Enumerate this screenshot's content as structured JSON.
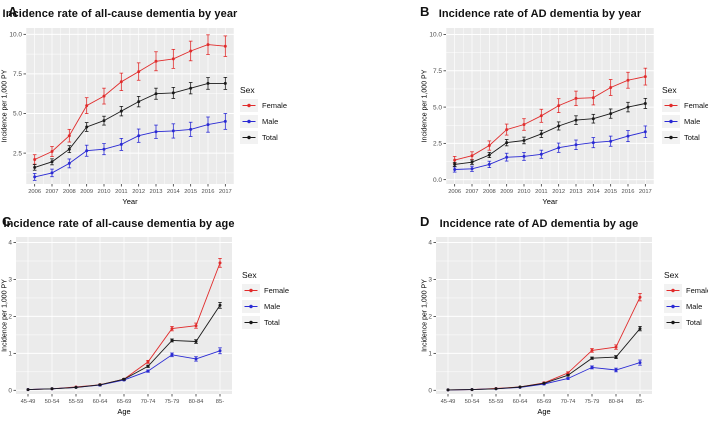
{
  "figure": {
    "background": "#ffffff",
    "panel_bg": "#ebebeb",
    "grid_color": "#ffffff",
    "tick_label_color": "#4d4d4d",
    "axis_title_color": "#000000",
    "legend": {
      "title": "Sex",
      "key_bg": "#f2f2f2",
      "entries": [
        {
          "label": "Female",
          "color": "#e12c2c"
        },
        {
          "label": "Male",
          "color": "#2a2ad4"
        },
        {
          "label": "Total",
          "color": "#1a1a1a"
        }
      ]
    }
  },
  "chart_data": [
    {
      "panel_label": "A",
      "title": "Incidence rate of all-cause dementia by year",
      "type": "line",
      "xlabel": "Year",
      "ylabel": "Incidence per 1,000 PY",
      "categories": [
        "2006",
        "2007",
        "2008",
        "2009",
        "2010",
        "2011",
        "2012",
        "2013",
        "2014",
        "2015",
        "2016",
        "2017"
      ],
      "ytick_values": [
        2.5,
        5.0,
        7.5,
        10.0
      ],
      "ytick_labels": [
        "2.5",
        "5.0",
        "7.5",
        "10.0"
      ],
      "ylim": [
        0.55,
        10.4
      ],
      "x_minor": true,
      "grid": true,
      "legend_position": "right",
      "series": [
        {
          "name": "Female",
          "color": "#e12c2c",
          "values": [
            2.1,
            2.6,
            3.6,
            5.5,
            6.1,
            7.0,
            7.65,
            8.3,
            8.45,
            8.95,
            9.35,
            9.25
          ],
          "err": [
            0.3,
            0.32,
            0.4,
            0.5,
            0.5,
            0.55,
            0.55,
            0.6,
            0.6,
            0.62,
            0.62,
            0.65
          ]
        },
        {
          "name": "Male",
          "color": "#2a2ad4",
          "values": [
            1.0,
            1.25,
            1.85,
            2.65,
            2.75,
            3.05,
            3.6,
            3.85,
            3.9,
            4.0,
            4.3,
            4.5
          ],
          "err": [
            0.22,
            0.24,
            0.28,
            0.35,
            0.35,
            0.38,
            0.42,
            0.42,
            0.45,
            0.45,
            0.48,
            0.5
          ]
        },
        {
          "name": "Total",
          "color": "#1a1a1a",
          "values": [
            1.6,
            1.95,
            2.75,
            4.15,
            4.55,
            5.15,
            5.75,
            6.25,
            6.3,
            6.6,
            6.9,
            6.9
          ],
          "err": [
            0.18,
            0.19,
            0.22,
            0.28,
            0.28,
            0.3,
            0.33,
            0.35,
            0.35,
            0.36,
            0.37,
            0.38
          ]
        }
      ]
    },
    {
      "panel_label": "B",
      "title": "Incidence rate of AD dementia by year",
      "type": "line",
      "xlabel": "Year",
      "ylabel": "Incidence per 1,000 PY",
      "categories": [
        "2006",
        "2007",
        "2008",
        "2009",
        "2010",
        "2011",
        "2012",
        "2013",
        "2014",
        "2015",
        "2016",
        "2017"
      ],
      "ytick_values": [
        0.0,
        2.5,
        5.0,
        7.5,
        10.0
      ],
      "ytick_labels": [
        "0.0",
        "2.5",
        "5.0",
        "7.5",
        "10.0"
      ],
      "ylim": [
        -0.3,
        10.45
      ],
      "x_minor": true,
      "grid": true,
      "legend_position": "right",
      "series": [
        {
          "name": "Female",
          "color": "#e12c2c",
          "values": [
            1.35,
            1.65,
            2.35,
            3.45,
            3.8,
            4.4,
            5.1,
            5.6,
            5.65,
            6.35,
            6.85,
            7.1
          ],
          "err": [
            0.25,
            0.27,
            0.32,
            0.38,
            0.4,
            0.45,
            0.48,
            0.5,
            0.5,
            0.55,
            0.55,
            0.58
          ]
        },
        {
          "name": "Male",
          "color": "#2a2ad4",
          "values": [
            0.7,
            0.75,
            1.05,
            1.55,
            1.6,
            1.75,
            2.2,
            2.4,
            2.55,
            2.65,
            3.0,
            3.3
          ],
          "err": [
            0.18,
            0.18,
            0.22,
            0.27,
            0.27,
            0.28,
            0.32,
            0.33,
            0.35,
            0.35,
            0.38,
            0.4
          ]
        },
        {
          "name": "Total",
          "color": "#1a1a1a",
          "values": [
            1.05,
            1.2,
            1.7,
            2.55,
            2.7,
            3.15,
            3.7,
            4.1,
            4.2,
            4.55,
            5.0,
            5.25
          ],
          "err": [
            0.14,
            0.15,
            0.18,
            0.22,
            0.23,
            0.25,
            0.28,
            0.3,
            0.3,
            0.32,
            0.33,
            0.35
          ]
        }
      ]
    },
    {
      "panel_label": "C",
      "title": "Incidence rate of all-cause dementia by age",
      "type": "line",
      "xlabel": "Age",
      "ylabel": "Incidence per 1,000 PY",
      "categories": [
        "45-49",
        "50-54",
        "55-59",
        "60-64",
        "65-69",
        "70-74",
        "75-79",
        "80-84",
        "85-"
      ],
      "ytick_values": [
        0,
        1,
        2,
        3,
        4
      ],
      "ytick_labels": [
        "0",
        "1",
        "2",
        "3",
        "4"
      ],
      "ylim": [
        -0.1,
        4.15
      ],
      "x_minor": false,
      "grid": true,
      "legend_position": "right",
      "series": [
        {
          "name": "Female",
          "color": "#e12c2c",
          "values": [
            0.02,
            0.04,
            0.09,
            0.15,
            0.3,
            0.77,
            1.67,
            1.75,
            3.45
          ],
          "err": [
            0.01,
            0.01,
            0.01,
            0.02,
            0.02,
            0.04,
            0.06,
            0.07,
            0.12
          ]
        },
        {
          "name": "Male",
          "color": "#2a2ad4",
          "values": [
            0.02,
            0.04,
            0.08,
            0.14,
            0.28,
            0.52,
            0.96,
            0.85,
            1.07
          ],
          "err": [
            0.01,
            0.01,
            0.01,
            0.02,
            0.02,
            0.03,
            0.05,
            0.06,
            0.08
          ]
        },
        {
          "name": "Total",
          "color": "#1a1a1a",
          "values": [
            0.02,
            0.04,
            0.08,
            0.15,
            0.3,
            0.65,
            1.35,
            1.32,
            2.3
          ],
          "err": [
            0.01,
            0.01,
            0.01,
            0.01,
            0.02,
            0.03,
            0.04,
            0.05,
            0.08
          ]
        }
      ]
    },
    {
      "panel_label": "D",
      "title": "Incidence rate of AD dementia by age",
      "type": "line",
      "xlabel": "Age",
      "ylabel": "Incidence per 1,000 PY",
      "categories": [
        "45-49",
        "50-54",
        "55-59",
        "60-64",
        "65-69",
        "70-74",
        "75-79",
        "80-84",
        "85-"
      ],
      "ytick_values": [
        0,
        1,
        2,
        3,
        4
      ],
      "ytick_labels": [
        "0",
        "1",
        "2",
        "3",
        "4"
      ],
      "ylim": [
        -0.1,
        4.15
      ],
      "x_minor": false,
      "grid": true,
      "legend_position": "right",
      "series": [
        {
          "name": "Female",
          "color": "#e12c2c",
          "values": [
            0.01,
            0.02,
            0.05,
            0.09,
            0.2,
            0.47,
            1.08,
            1.17,
            2.52
          ],
          "err": [
            0.01,
            0.01,
            0.01,
            0.01,
            0.02,
            0.03,
            0.05,
            0.06,
            0.1
          ]
        },
        {
          "name": "Male",
          "color": "#2a2ad4",
          "values": [
            0.01,
            0.02,
            0.04,
            0.08,
            0.17,
            0.32,
            0.62,
            0.55,
            0.75
          ],
          "err": [
            0.01,
            0.01,
            0.01,
            0.01,
            0.02,
            0.02,
            0.04,
            0.05,
            0.07
          ]
        },
        {
          "name": "Total",
          "color": "#1a1a1a",
          "values": [
            0.01,
            0.02,
            0.04,
            0.09,
            0.19,
            0.41,
            0.87,
            0.9,
            1.67
          ],
          "err": [
            0.01,
            0.01,
            0.01,
            0.01,
            0.01,
            0.02,
            0.03,
            0.04,
            0.06
          ]
        }
      ]
    }
  ]
}
